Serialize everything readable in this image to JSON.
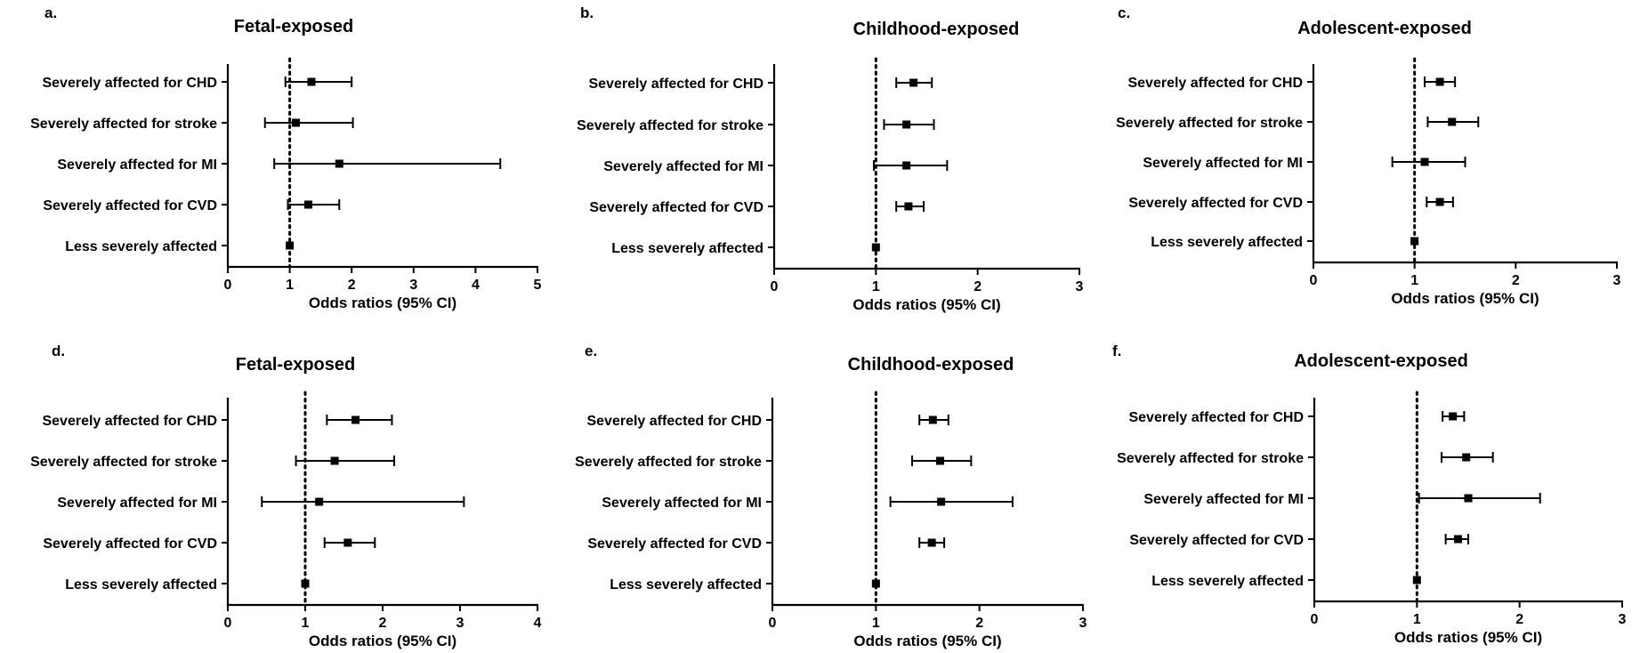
{
  "chart_data": [
    {
      "panel": "a.",
      "type": "scatter",
      "title": "Fetal-exposed",
      "xlabel": "Odds ratios (95%  CI)",
      "xlim": [
        0,
        5
      ],
      "xticks": [
        0,
        1,
        2,
        3,
        4,
        5
      ],
      "reference_line": 1,
      "categories": [
        "Severely affected for CHD",
        "Severely affected for stroke",
        "Severely affected for MI",
        "Severely affected for CVD",
        "Less severely affected"
      ],
      "or": [
        1.35,
        1.1,
        1.8,
        1.3,
        1.0
      ],
      "lower": [
        0.93,
        0.6,
        0.75,
        0.97,
        null
      ],
      "upper": [
        2.0,
        2.02,
        4.4,
        1.8,
        null
      ]
    },
    {
      "panel": "b.",
      "type": "scatter",
      "title": "Childhood-exposed",
      "xlabel": "Odds ratios (95%  CI)",
      "xlim": [
        0,
        3
      ],
      "xticks": [
        0,
        1,
        2,
        3
      ],
      "reference_line": 1,
      "categories": [
        "Severely affected  for CHD",
        "Severely affected for stroke",
        "Severely affected for MI",
        "Severely affected for CVD",
        "Less severely affected"
      ],
      "or": [
        1.37,
        1.3,
        1.3,
        1.32,
        1.0
      ],
      "lower": [
        1.2,
        1.08,
        0.98,
        1.2,
        null
      ],
      "upper": [
        1.55,
        1.57,
        1.7,
        1.47,
        null
      ]
    },
    {
      "panel": "c.",
      "type": "scatter",
      "title": "Adolescent-exposed",
      "xlabel": "Odds ratios (95%  CI)",
      "xlim": [
        0,
        3
      ],
      "xticks": [
        0,
        1,
        2,
        3
      ],
      "reference_line": 1,
      "categories": [
        "Severely affected  for CHD",
        "Severely affected for stroke",
        "Severely affected for MI",
        "Severely affected for CVD",
        "Less severely affected"
      ],
      "or": [
        1.25,
        1.37,
        1.1,
        1.25,
        1.0
      ],
      "lower": [
        1.1,
        1.13,
        0.78,
        1.12,
        null
      ],
      "upper": [
        1.4,
        1.63,
        1.5,
        1.38,
        null
      ]
    },
    {
      "panel": "d.",
      "type": "scatter",
      "title": "Fetal-exposed",
      "xlabel": "Odds ratios (95%  CI)",
      "xlim": [
        0,
        4
      ],
      "xticks": [
        0,
        1,
        2,
        3,
        4
      ],
      "reference_line": 1,
      "categories": [
        "Severely affected for CHD",
        "Severely affected for stroke",
        "Severely affected for MI",
        "Severely affected for CVD",
        "Less severely affected"
      ],
      "or": [
        1.65,
        1.38,
        1.18,
        1.55,
        1.0
      ],
      "lower": [
        1.28,
        0.88,
        0.44,
        1.25,
        null
      ],
      "upper": [
        2.12,
        2.15,
        3.05,
        1.9,
        null
      ]
    },
    {
      "panel": "e.",
      "type": "scatter",
      "title": "Childhood-exposed",
      "xlabel": "Odds ratios (95%  CI)",
      "xlim": [
        0,
        3
      ],
      "xticks": [
        0,
        1,
        2,
        3
      ],
      "reference_line": 1,
      "categories": [
        "Severely affected for CHD",
        "Severely affected for stroke",
        "Severely affected for MI",
        "Severely affected for CVD",
        "Less severely affected"
      ],
      "or": [
        1.55,
        1.62,
        1.63,
        1.54,
        1.0
      ],
      "lower": [
        1.42,
        1.35,
        1.14,
        1.42,
        null
      ],
      "upper": [
        1.7,
        1.92,
        2.32,
        1.66,
        null
      ]
    },
    {
      "panel": "f.",
      "type": "scatter",
      "title": "Adolescent-exposed",
      "xlabel": "Odds ratios (95%  CI)",
      "xlim": [
        0,
        3
      ],
      "xticks": [
        0,
        1,
        2,
        3
      ],
      "reference_line": 1,
      "categories": [
        "Severely affected for CHD",
        "Severely affected for stroke",
        "Severely affected for MI",
        "Severely affected for CVD",
        "Less severely affected"
      ],
      "or": [
        1.35,
        1.48,
        1.5,
        1.4,
        1.0
      ],
      "lower": [
        1.25,
        1.24,
        1.02,
        1.28,
        null
      ],
      "upper": [
        1.46,
        1.74,
        2.2,
        1.5,
        null
      ]
    }
  ]
}
